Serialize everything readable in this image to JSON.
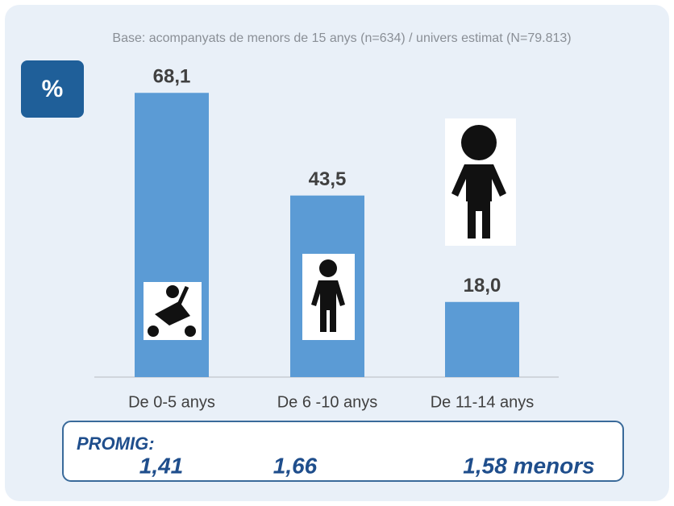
{
  "chart_data": {
    "type": "bar",
    "subtitle": "Base: acompanyats de menors de 15 anys (n=634) / univers estimat (N=79.813)",
    "unit_badge": "%",
    "categories": [
      "De 0-5 anys",
      "De 6 -10 anys",
      "De 11-14 anys"
    ],
    "values": [
      68.1,
      43.5,
      18.0
    ],
    "value_labels": [
      "68,1",
      "43,5",
      "18,0"
    ],
    "color": "#5b9bd5",
    "promig": {
      "label": "PROMIG:",
      "values": [
        "1,41",
        "1,66",
        "1,58 menors"
      ]
    }
  }
}
